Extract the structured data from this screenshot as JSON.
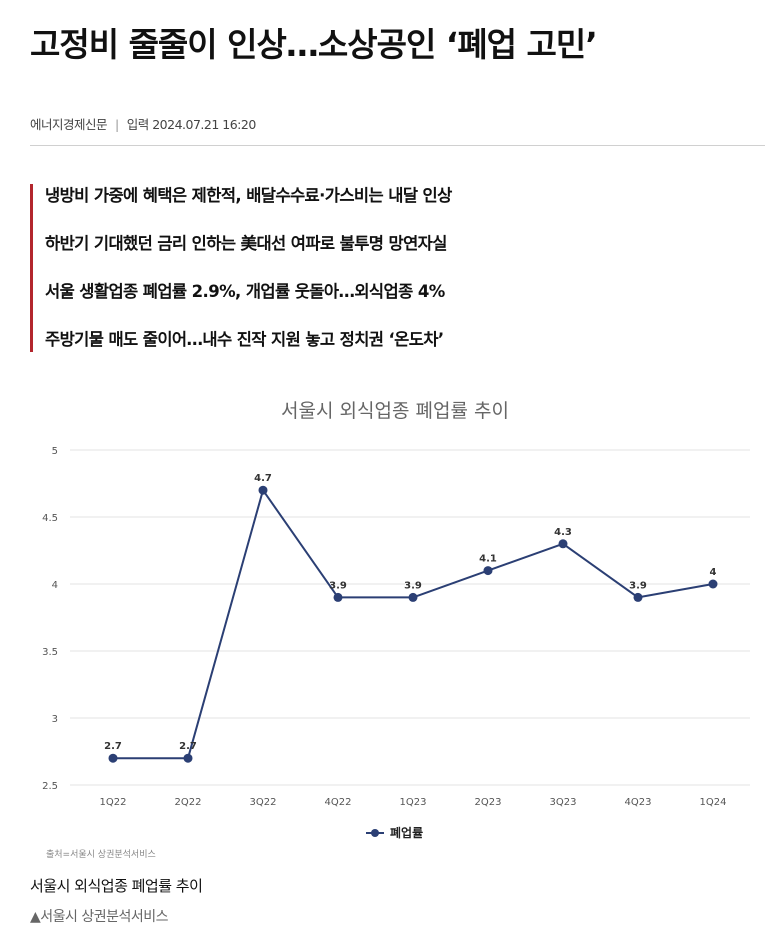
{
  "article": {
    "headline": "고정비 줄줄이 인상…소상공인 ‘폐업 고민’",
    "source": "에너지경제신문",
    "date_label": "입력 2024.07.21 16:20",
    "summary": [
      "냉방비 가중에 혜택은 제한적, 배달수수료·가스비는 내달 인상",
      "하반기 기대했던 금리 인하는 美대선 여파로 불투명 망연자실",
      "서울 생활업종 폐업률 2.9%, 개업률 웃돌아…외식업종 4%",
      "주방기물 매도 줄이어…내수 진작 지원 놓고 정치권 ‘온도차’"
    ],
    "caption": "서울시 외식업종 폐업률 추이",
    "credit": "▲서울시 상권분석서비스"
  },
  "colors": {
    "accent": "#b3262d",
    "series": "#2b3f74"
  },
  "chart_data": {
    "type": "line",
    "title": "서울시 외식업종 폐업률 추이",
    "categories": [
      "1Q22",
      "2Q22",
      "3Q22",
      "4Q22",
      "1Q23",
      "2Q23",
      "3Q23",
      "4Q23",
      "1Q24"
    ],
    "series": [
      {
        "name": "폐업률",
        "values": [
          2.7,
          2.7,
          4.7,
          3.9,
          3.9,
          4.1,
          4.3,
          3.9,
          4
        ]
      }
    ],
    "data_labels": [
      "2.7",
      "2.7",
      "4.7",
      "3.9",
      "3.9",
      "4.1",
      "4.3",
      "3.9",
      "4"
    ],
    "y_ticks": [
      "2.5",
      "3",
      "3.5",
      "4",
      "4.5",
      "5"
    ],
    "ylim": [
      2.5,
      5
    ],
    "grid": true,
    "legend": "bottom-center",
    "source_note": "출처=서울시 상권분석서비스"
  }
}
